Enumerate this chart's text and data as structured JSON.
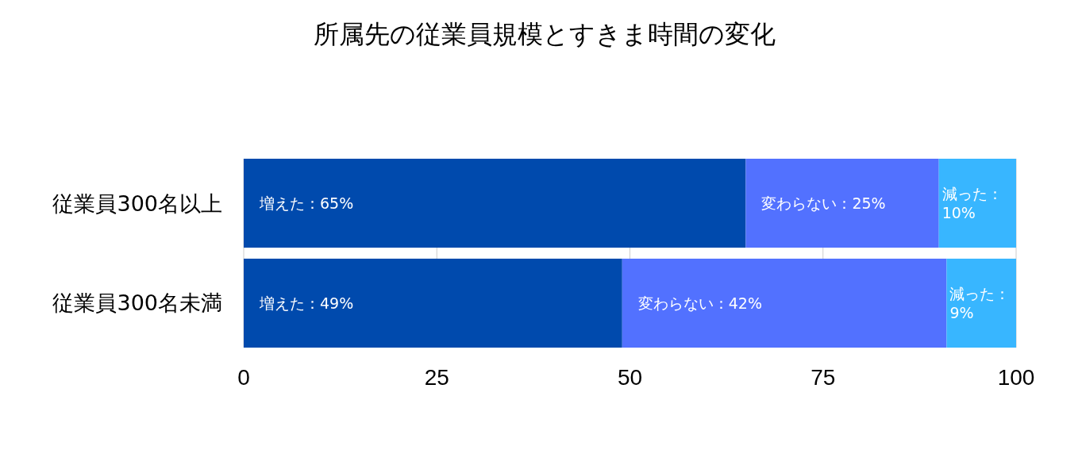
{
  "chart_data": {
    "type": "bar",
    "orientation": "horizontal",
    "stacked": true,
    "title": "所属先の従業員規模とすきま時間の変化",
    "categories": [
      "従業員300名以上",
      "従業員300名未満"
    ],
    "series": [
      {
        "color": "#004aad",
        "values": [
          65,
          49
        ],
        "value_labels": [
          "増えた：65%",
          "増えた：49%"
        ]
      },
      {
        "color": "#5271ff",
        "values": [
          25,
          42
        ],
        "value_labels": [
          "変わらない：25%",
          "変わらない：42%"
        ]
      },
      {
        "color": "#38b6ff",
        "values": [
          10,
          9
        ],
        "value_labels": [
          "減った：10%",
          "減った：9%"
        ]
      }
    ],
    "xlim": [
      0,
      100
    ],
    "xticks": [
      0,
      25,
      50,
      75,
      100
    ],
    "grid": "x"
  }
}
